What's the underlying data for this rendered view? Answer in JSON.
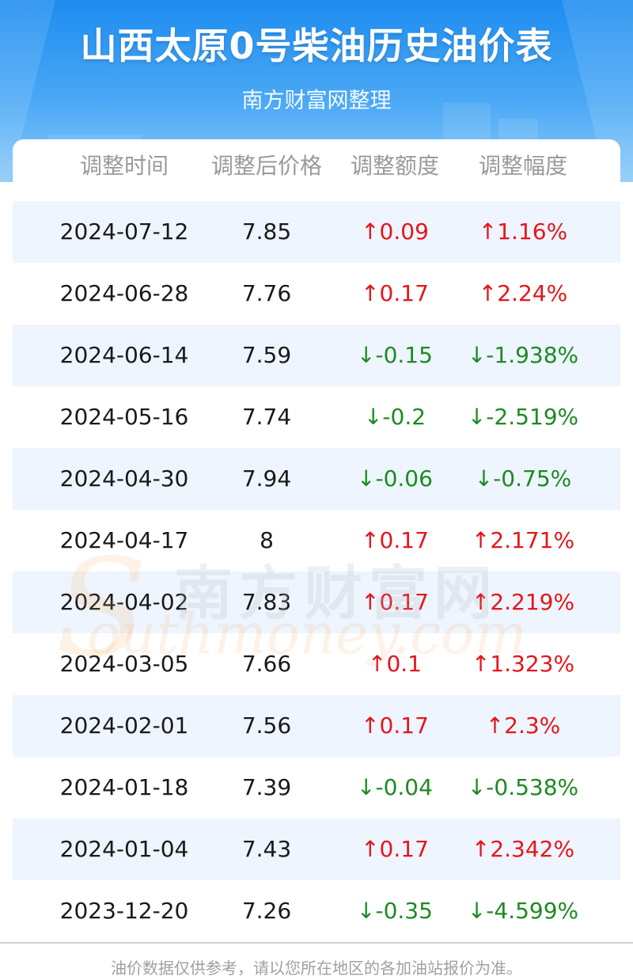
{
  "header": {
    "title": "山西太原0号柴油历史油价表",
    "subtitle": "南方财富网整理"
  },
  "table": {
    "columns": [
      "调整时间",
      "调整后价格",
      "调整额度",
      "调整幅度"
    ],
    "rows": [
      {
        "date": "2024-07-12",
        "price": "7.85",
        "change": "↑0.09",
        "percent": "↑1.16%",
        "direction": "up"
      },
      {
        "date": "2024-06-28",
        "price": "7.76",
        "change": "↑0.17",
        "percent": "↑2.24%",
        "direction": "up"
      },
      {
        "date": "2024-06-14",
        "price": "7.59",
        "change": "↓-0.15",
        "percent": "↓-1.938%",
        "direction": "down"
      },
      {
        "date": "2024-05-16",
        "price": "7.74",
        "change": "↓-0.2",
        "percent": "↓-2.519%",
        "direction": "down"
      },
      {
        "date": "2024-04-30",
        "price": "7.94",
        "change": "↓-0.06",
        "percent": "↓-0.75%",
        "direction": "down"
      },
      {
        "date": "2024-04-17",
        "price": "8",
        "change": "↑0.17",
        "percent": "↑2.171%",
        "direction": "up"
      },
      {
        "date": "2024-04-02",
        "price": "7.83",
        "change": "↑0.17",
        "percent": "↑2.219%",
        "direction": "up"
      },
      {
        "date": "2024-03-05",
        "price": "7.66",
        "change": "↑0.1",
        "percent": "↑1.323%",
        "direction": "up"
      },
      {
        "date": "2024-02-01",
        "price": "7.56",
        "change": "↑0.17",
        "percent": "↑2.3%",
        "direction": "up"
      },
      {
        "date": "2024-01-18",
        "price": "7.39",
        "change": "↓-0.04",
        "percent": "↓-0.538%",
        "direction": "down"
      },
      {
        "date": "2024-01-04",
        "price": "7.43",
        "change": "↑0.17",
        "percent": "↑2.342%",
        "direction": "up"
      },
      {
        "date": "2023-12-20",
        "price": "7.26",
        "change": "↓-0.35",
        "percent": "↓-4.599%",
        "direction": "down"
      }
    ]
  },
  "watermark": {
    "cn": "南方财富网",
    "en": "outhmoney.com",
    "letter": "S"
  },
  "footer": {
    "note": "油价数据仅供参考，请以您所在地区的各加油站报价为准。"
  },
  "colors": {
    "up": "#e4161c",
    "down": "#1d8a22",
    "header_bg": "#1d8cf0",
    "row_alt": "#eef5fe"
  }
}
